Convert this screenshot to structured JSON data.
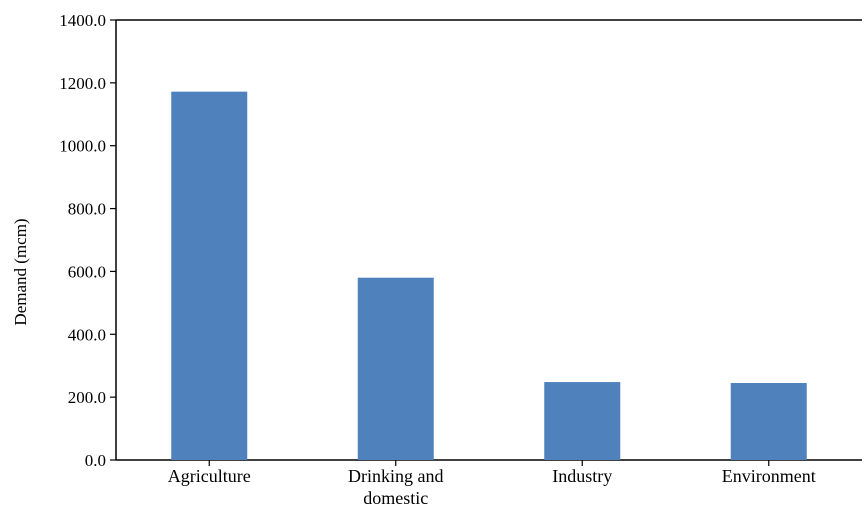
{
  "chart_data": {
    "type": "bar",
    "title": "",
    "xlabel": "",
    "ylabel": "Demand (mcm)",
    "categories": [
      [
        "Agriculture"
      ],
      [
        "Drinking and",
        "domestic"
      ],
      [
        "Industry"
      ],
      [
        "Environment"
      ]
    ],
    "values": [
      1172,
      580,
      248,
      245
    ],
    "ylim": [
      0,
      1400
    ],
    "yticks": [
      "0.0",
      "200.0",
      "400.0",
      "600.0",
      "800.0",
      "1000.0",
      "1200.0",
      "1400.0"
    ],
    "grid": false,
    "legend": "none",
    "bar_color": "#4f81bd",
    "axis_color": "#000000"
  }
}
